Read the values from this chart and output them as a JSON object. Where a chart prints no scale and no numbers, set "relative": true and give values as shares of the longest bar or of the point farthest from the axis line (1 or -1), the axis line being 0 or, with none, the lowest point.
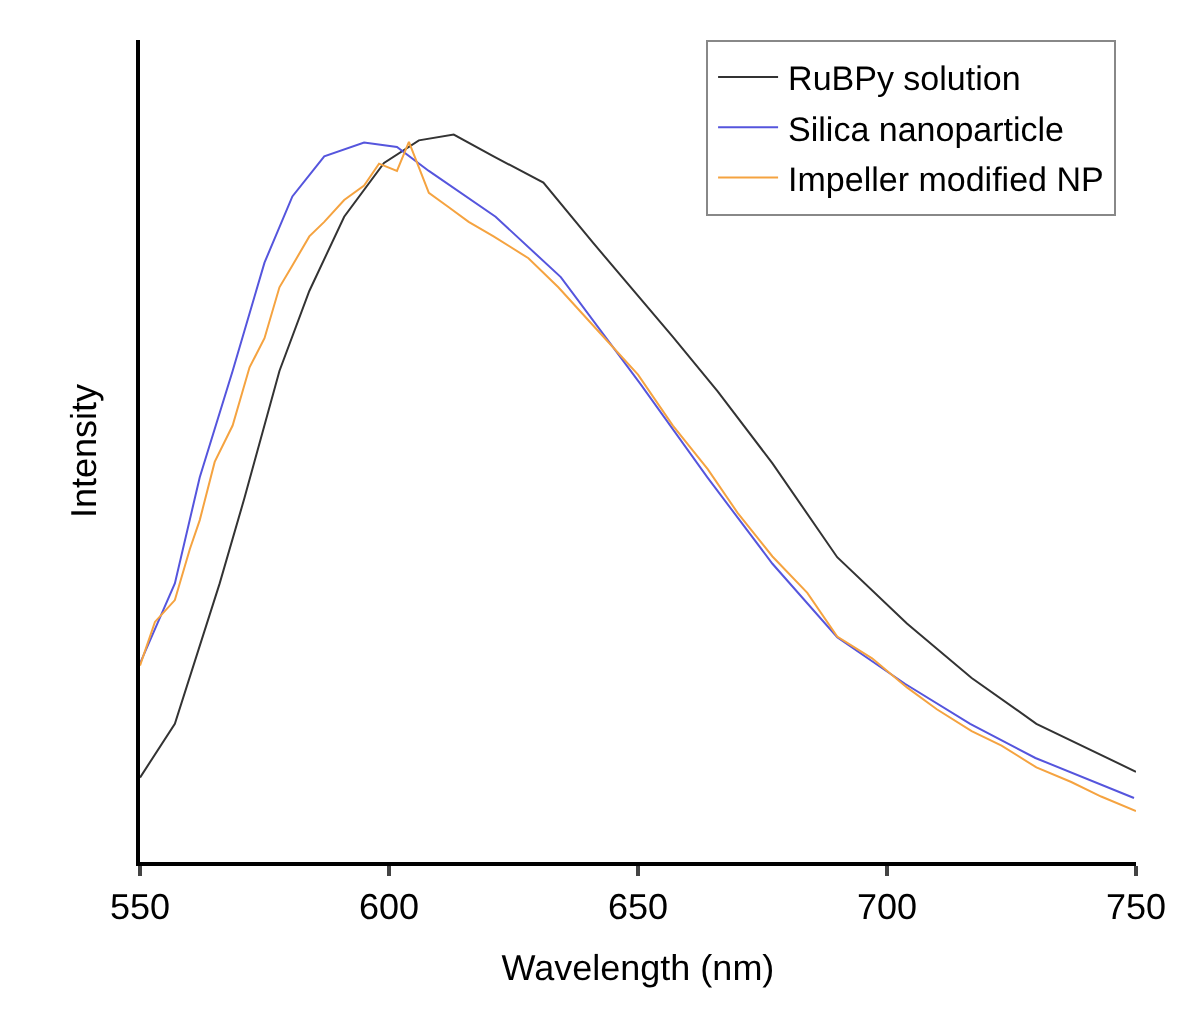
{
  "chart_data": {
    "type": "line",
    "relative": true,
    "xlabel": "Wavelength (nm)",
    "ylabel": "Intensity",
    "xlim": [
      550,
      750
    ],
    "xticks": [
      550,
      600,
      650,
      700,
      750
    ],
    "legend": "top right",
    "marker": "none",
    "line_style": "solid",
    "series": [
      {
        "name": "RuBPy solution",
        "color": "#333333",
        "x": [
          550,
          557,
          566,
          571,
          578,
          584,
          591,
          599,
          606,
          613,
          621,
          631,
          641,
          657,
          666,
          677,
          690,
          704,
          717,
          730,
          750
        ],
        "values": [
          0.116,
          0.19,
          0.383,
          0.501,
          0.675,
          0.785,
          0.887,
          0.961,
          0.992,
          1.0,
          0.97,
          0.934,
          0.851,
          0.722,
          0.647,
          0.548,
          0.419,
          0.328,
          0.253,
          0.19,
          0.124
        ]
      },
      {
        "name": "Silica nanoparticle",
        "color": "#5555dd",
        "x": [
          550,
          557,
          562,
          568.6,
          575,
          580.6,
          587,
          595,
          601.6,
          608,
          621.4,
          634.5,
          650.4,
          663.9,
          677,
          690,
          703.6,
          716.7,
          729.8,
          749.6
        ],
        "values": [
          0.273,
          0.383,
          0.529,
          0.675,
          0.824,
          0.915,
          0.97,
          0.989,
          0.983,
          0.95,
          0.887,
          0.804,
          0.658,
          0.529,
          0.41,
          0.309,
          0.245,
          0.19,
          0.143,
          0.088
        ]
      },
      {
        "name": "Impeller modified NP",
        "color": "#f5a340",
        "x": [
          550,
          553,
          557,
          560,
          562,
          565,
          568.6,
          572,
          575,
          578,
          580.6,
          584,
          587,
          591,
          595,
          598,
          601.6,
          604,
          608,
          612,
          616,
          621,
          628,
          634,
          642,
          650,
          657,
          664,
          670,
          677,
          684,
          690,
          697,
          704,
          710,
          717,
          723,
          730,
          737,
          743,
          750
        ],
        "values": [
          0.27,
          0.33,
          0.36,
          0.43,
          0.47,
          0.55,
          0.6,
          0.68,
          0.72,
          0.79,
          0.82,
          0.86,
          0.88,
          0.91,
          0.93,
          0.96,
          0.95,
          0.99,
          0.92,
          0.9,
          0.88,
          0.86,
          0.83,
          0.79,
          0.73,
          0.67,
          0.6,
          0.54,
          0.48,
          0.42,
          0.37,
          0.31,
          0.28,
          0.24,
          0.21,
          0.18,
          0.16,
          0.13,
          0.11,
          0.09,
          0.07
        ]
      }
    ]
  }
}
